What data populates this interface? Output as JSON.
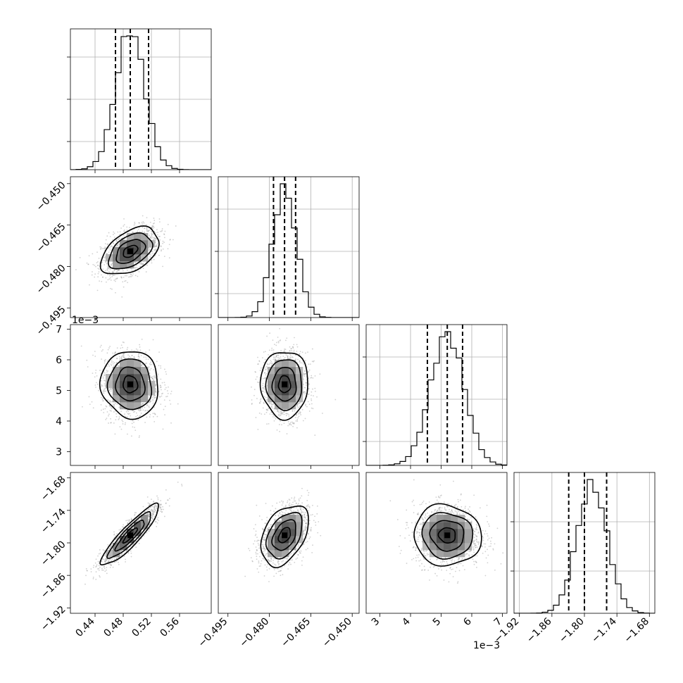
{
  "chart_data": {
    "type": "corner",
    "parameters": [
      {
        "name": "",
        "center": 0.49,
        "sigma": 0.0205,
        "range": [
          0.405,
          0.605
        ],
        "ticks": [
          0.44,
          0.48,
          0.52,
          0.56
        ],
        "tick_labels": [
          "0.44",
          "0.48",
          "0.52",
          "0.56"
        ],
        "quantiles": [
          0.469,
          0.49,
          0.516
        ],
        "offset_label": ""
      },
      {
        "name": "",
        "center": -0.4745,
        "sigma": 0.0043,
        "range": [
          -0.4985,
          -0.4475
        ],
        "ticks": [
          -0.495,
          -0.48,
          -0.465,
          -0.45
        ],
        "tick_labels": [
          "−0.495",
          "−0.480",
          "−0.465",
          "−0.450"
        ],
        "quantiles": [
          -0.4785,
          -0.4745,
          -0.4705
        ],
        "offset_label": ""
      },
      {
        "name": "",
        "center": 5.2,
        "sigma": 0.55,
        "range": [
          2.55,
          7.15
        ],
        "ticks": [
          3,
          4,
          5,
          6,
          7
        ],
        "tick_labels": [
          "3",
          "4",
          "5",
          "6",
          "7"
        ],
        "quantiles": [
          4.55,
          5.2,
          5.7
        ],
        "offset_label": "1e−3"
      },
      {
        "name": "",
        "center": -1.786,
        "sigma": 0.028,
        "range": [
          -1.93,
          -1.67
        ],
        "ticks": [
          -1.92,
          -1.86,
          -1.8,
          -1.74,
          -1.68
        ],
        "tick_labels": [
          "−1.92",
          "−1.86",
          "−1.80",
          "−1.74",
          "−1.68"
        ],
        "quantiles": [
          -1.829,
          -1.8,
          -1.759
        ],
        "offset_label": ""
      }
    ],
    "correlations": {
      "0-1": 0.45,
      "0-2": -0.05,
      "1-2": 0.0,
      "0-3": 0.9,
      "1-3": 0.4,
      "2-3": -0.05
    },
    "diagonal_y_gridlines": [
      [
        0.2,
        0.5,
        0.8
      ],
      [
        0.17,
        0.47,
        0.77
      ],
      [
        0.17,
        0.47,
        0.77
      ],
      [
        0.3,
        0.65
      ]
    ],
    "histogram_bins": 25,
    "contour_levels_sigma": [
      0.5,
      1.0,
      1.5,
      2.0
    ],
    "grid": true,
    "legend": "none"
  }
}
